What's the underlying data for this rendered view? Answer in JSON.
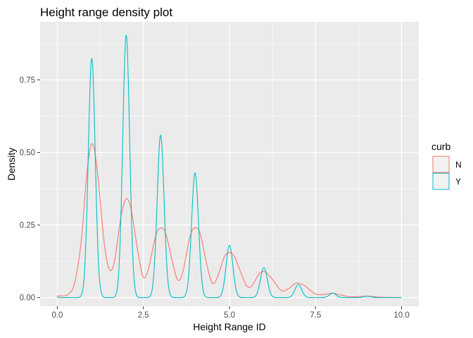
{
  "chart_data": {
    "type": "line",
    "title": "Height range density plot",
    "xlabel": "Height Range ID",
    "ylabel": "Density",
    "xlim": [
      -0.5,
      10.5
    ],
    "ylim": [
      -0.03,
      0.95
    ],
    "x_ticks": [
      0,
      2.5,
      5,
      7.5,
      10
    ],
    "x_tick_labels": [
      "0.0",
      "2.5",
      "5.0",
      "7.5",
      "10.0"
    ],
    "y_ticks": [
      0,
      0.25,
      0.5,
      0.75
    ],
    "y_tick_labels": [
      "0.00",
      "0.25",
      "0.50",
      "0.75"
    ],
    "grid": true,
    "background": "#ebebeb",
    "legend": {
      "title": "curb",
      "position": "right"
    },
    "series": [
      {
        "name": "N",
        "color": "#f8766d",
        "points": [
          [
            0.0,
            0.006
          ],
          [
            0.3,
            0.01
          ],
          [
            0.5,
            0.05
          ],
          [
            0.7,
            0.2
          ],
          [
            0.85,
            0.42
          ],
          [
            1.0,
            0.53
          ],
          [
            1.15,
            0.45
          ],
          [
            1.35,
            0.2
          ],
          [
            1.5,
            0.1
          ],
          [
            1.65,
            0.12
          ],
          [
            1.85,
            0.28
          ],
          [
            2.0,
            0.34
          ],
          [
            2.15,
            0.3
          ],
          [
            2.35,
            0.15
          ],
          [
            2.5,
            0.07
          ],
          [
            2.65,
            0.1
          ],
          [
            2.85,
            0.21
          ],
          [
            3.0,
            0.24
          ],
          [
            3.15,
            0.22
          ],
          [
            3.35,
            0.12
          ],
          [
            3.5,
            0.06
          ],
          [
            3.65,
            0.09
          ],
          [
            3.85,
            0.21
          ],
          [
            4.0,
            0.24
          ],
          [
            4.15,
            0.22
          ],
          [
            4.35,
            0.11
          ],
          [
            4.5,
            0.05
          ],
          [
            4.65,
            0.07
          ],
          [
            4.85,
            0.14
          ],
          [
            5.0,
            0.155
          ],
          [
            5.15,
            0.14
          ],
          [
            5.35,
            0.08
          ],
          [
            5.5,
            0.04
          ],
          [
            5.65,
            0.04
          ],
          [
            5.85,
            0.08
          ],
          [
            6.0,
            0.09
          ],
          [
            6.2,
            0.07
          ],
          [
            6.5,
            0.025
          ],
          [
            6.7,
            0.03
          ],
          [
            6.9,
            0.048
          ],
          [
            7.0,
            0.05
          ],
          [
            7.2,
            0.04
          ],
          [
            7.5,
            0.012
          ],
          [
            7.8,
            0.012
          ],
          [
            8.0,
            0.015
          ],
          [
            8.2,
            0.01
          ],
          [
            8.5,
            0.003
          ],
          [
            8.8,
            0.004
          ],
          [
            9.0,
            0.005
          ],
          [
            9.3,
            0.002
          ],
          [
            9.6,
            0.001
          ],
          [
            10.0,
            0.0
          ]
        ]
      },
      {
        "name": "Y",
        "color": "#00bfc4",
        "peaks": [
          [
            1,
            0.825
          ],
          [
            2,
            0.905
          ],
          [
            3,
            0.56
          ],
          [
            4,
            0.43
          ],
          [
            5,
            0.18
          ],
          [
            6,
            0.103
          ],
          [
            7,
            0.045
          ],
          [
            8,
            0.015
          ],
          [
            9,
            0.005
          ]
        ],
        "x_range": [
          0,
          10
        ]
      }
    ]
  }
}
